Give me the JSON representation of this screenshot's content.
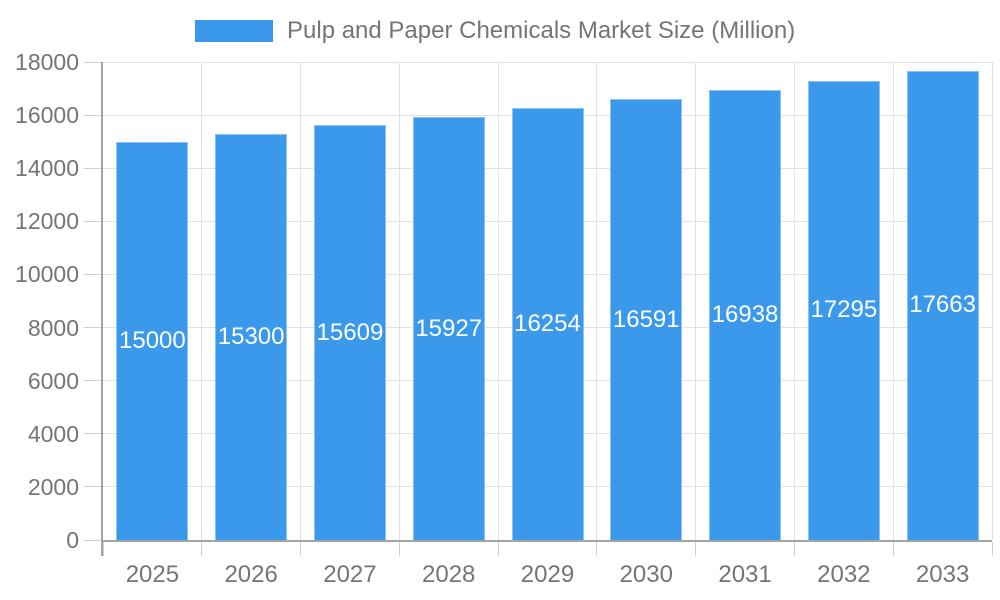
{
  "legend": {
    "label": "Pulp and Paper Chemicals Market Size (Million)"
  },
  "chart_data": {
    "type": "bar",
    "title": "Pulp and Paper Chemicals Market Size (Million)",
    "categories": [
      "2025",
      "2026",
      "2027",
      "2028",
      "2029",
      "2030",
      "2031",
      "2032",
      "2033"
    ],
    "series": [
      {
        "name": "Pulp and Paper Chemicals Market Size (Million)",
        "values": [
          15000,
          15300,
          15609,
          15927,
          16254,
          16591,
          16938,
          17295,
          17663
        ]
      }
    ],
    "bar_value_labels": [
      "15000",
      "15300",
      "15609",
      "15927",
      "16254",
      "16591",
      "16938",
      "17295",
      "17663"
    ],
    "xlabel": "",
    "ylabel": "",
    "ylim": [
      0,
      18000
    ],
    "ytick_interval": 2000,
    "yticks": [
      0,
      2000,
      4000,
      6000,
      8000,
      10000,
      12000,
      14000,
      16000,
      18000
    ],
    "legend_position": "top",
    "grid": {
      "horizontal": true,
      "vertical": true
    },
    "colors": {
      "bar_fill": "#3B99EC",
      "bar_border": "#8CC1F2",
      "value_label": "#FFFFFF",
      "axis_text": "#757575",
      "grid_line": "#E2E2E2",
      "tick_line": "#CFCFCF",
      "axis_line": "#A3A3A3",
      "background": "#FFFFFF"
    }
  }
}
